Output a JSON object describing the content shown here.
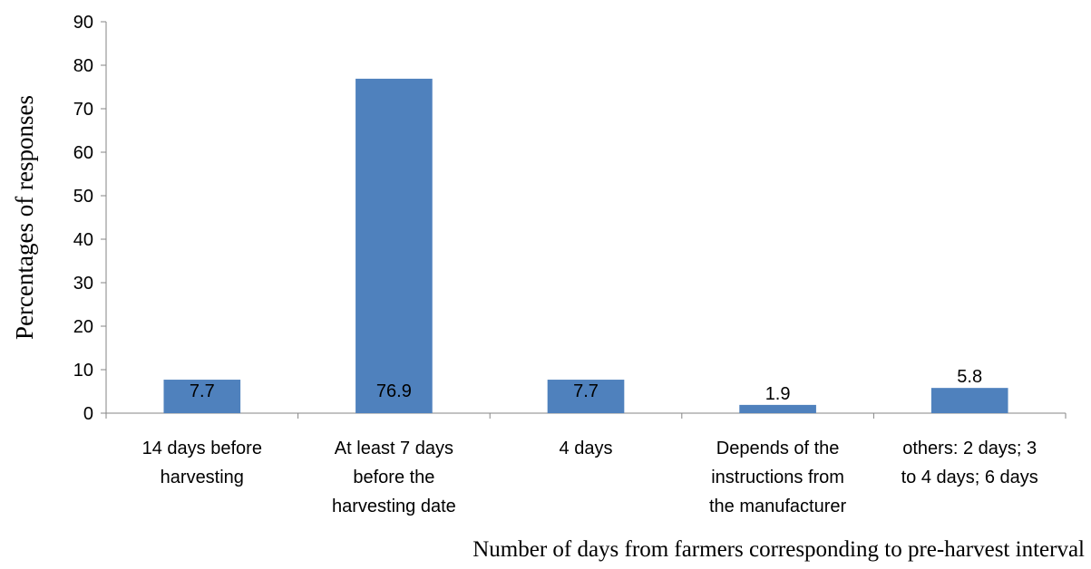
{
  "chart_data": {
    "type": "bar",
    "title": "",
    "categories": [
      [
        "14 days before",
        "harvesting"
      ],
      [
        "At least 7 days",
        "before the",
        "harvesting date"
      ],
      [
        "4 days"
      ],
      [
        "Depends of the",
        "instructions from",
        "the manufacturer"
      ],
      [
        "others: 2 days; 3",
        "to 4 days; 6 days"
      ]
    ],
    "values": [
      7.7,
      76.9,
      7.7,
      1.9,
      5.8
    ],
    "data_labels": [
      "7.7",
      "76.9",
      "7.7",
      "1.9",
      "5.8"
    ],
    "xlabel": "Number of days from farmers corresponding to pre-harvest interval",
    "ylabel": "Percentages of responses",
    "ylim": [
      0,
      90
    ],
    "yticks": [
      0,
      10,
      20,
      30,
      40,
      50,
      60,
      70,
      80,
      90
    ],
    "bar_color": "#4F81BD",
    "grid": false,
    "legend": "none"
  }
}
